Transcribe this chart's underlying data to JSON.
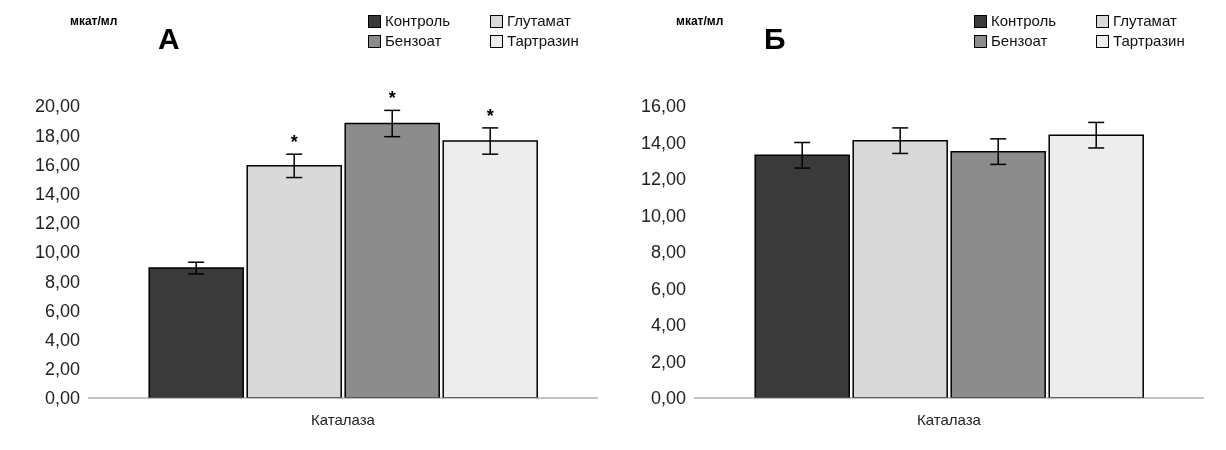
{
  "chart_data": [
    {
      "type": "bar",
      "title": "А",
      "ylabel": "мкат/мл",
      "categories": [
        "Каталаза"
      ],
      "ylim": [
        0,
        20
      ],
      "yticks": [
        {
          "value": 0,
          "label": "0,00"
        },
        {
          "value": 2,
          "label": "2,00"
        },
        {
          "value": 4,
          "label": "4,00"
        },
        {
          "value": 6,
          "label": "6,00"
        },
        {
          "value": 8,
          "label": "8,00"
        },
        {
          "value": 10,
          "label": "10,00"
        },
        {
          "value": 12,
          "label": "12,00"
        },
        {
          "value": 14,
          "label": "14,00"
        },
        {
          "value": 16,
          "label": "16,00"
        },
        {
          "value": 18,
          "label": "18,00"
        },
        {
          "value": 20,
          "label": "20,00"
        }
      ],
      "grid": false,
      "legend": "top right",
      "series": [
        {
          "name": "Контроль",
          "color": "#3a3a3a",
          "values": [
            8.9
          ],
          "errors": [
            0.4
          ],
          "value_labels": [
            null
          ]
        },
        {
          "name": "Глутамат",
          "color": "#d9d9d9",
          "values": [
            15.9
          ],
          "errors": [
            0.8
          ],
          "value_labels": [
            "*"
          ]
        },
        {
          "name": "Бензоат",
          "color": "#8c8c8c",
          "values": [
            18.8
          ],
          "errors": [
            0.9
          ],
          "value_labels": [
            "*"
          ]
        },
        {
          "name": "Тартразин",
          "color": "#ededed",
          "values": [
            17.6
          ],
          "errors": [
            0.9
          ],
          "value_labels": [
            "*"
          ]
        }
      ]
    },
    {
      "type": "bar",
      "title": "Б",
      "ylabel": "мкат/мл",
      "categories": [
        "Каталаза"
      ],
      "ylim": [
        0,
        16
      ],
      "yticks": [
        {
          "value": 0,
          "label": "0,00"
        },
        {
          "value": 2,
          "label": "2,00"
        },
        {
          "value": 4,
          "label": "4,00"
        },
        {
          "value": 6,
          "label": "6,00"
        },
        {
          "value": 8,
          "label": "8,00"
        },
        {
          "value": 10,
          "label": "10,00"
        },
        {
          "value": 12,
          "label": "12,00"
        },
        {
          "value": 14,
          "label": "14,00"
        },
        {
          "value": 16,
          "label": "16,00"
        }
      ],
      "grid": false,
      "legend": "top right",
      "series": [
        {
          "name": "Контроль",
          "color": "#3a3a3a",
          "values": [
            13.3
          ],
          "errors": [
            0.7
          ]
        },
        {
          "name": "Глутамат",
          "color": "#d9d9d9",
          "values": [
            14.1
          ],
          "errors": [
            0.7
          ]
        },
        {
          "name": "Бензоат",
          "color": "#8c8c8c",
          "values": [
            13.5
          ],
          "errors": [
            0.7
          ]
        },
        {
          "name": "Тартразин",
          "color": "#ededed",
          "values": [
            14.4
          ],
          "errors": [
            0.7
          ]
        }
      ]
    }
  ]
}
